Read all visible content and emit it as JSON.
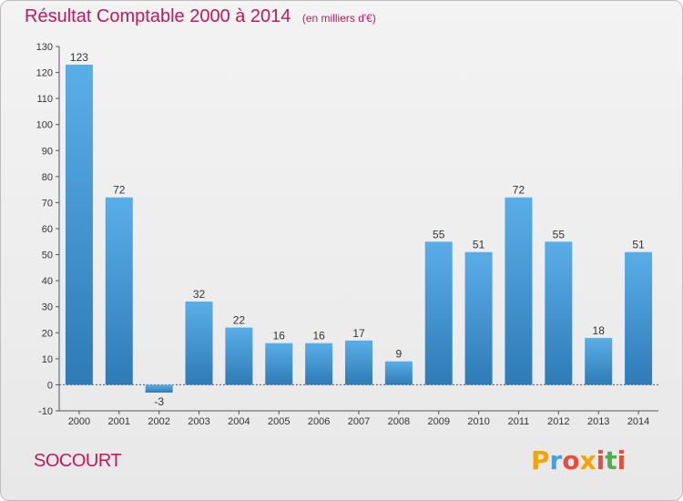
{
  "header": {
    "title": "Résultat Comptable 2000 à 2014",
    "unit": "(en milliers d'€)"
  },
  "place": "SOCOURT",
  "logo": {
    "text": "Proxiti",
    "colors": [
      "#f4a300",
      "#4a9fd8",
      "#e74c3c",
      "#f4a300",
      "#e74c3c",
      "#4caf50",
      "#e74c3c"
    ]
  },
  "colors": {
    "title": "#c2185b",
    "bar_top": "#5aaee8",
    "bar_bottom": "#2e7bb6"
  },
  "chart_data": {
    "type": "bar",
    "title": "Résultat Comptable 2000 à 2014",
    "xlabel": "",
    "ylabel": "",
    "ylim": [
      -10,
      130
    ],
    "yticks": [
      -10,
      0,
      10,
      20,
      30,
      40,
      50,
      60,
      70,
      80,
      90,
      100,
      110,
      120,
      130
    ],
    "categories": [
      "2000",
      "2001",
      "2002",
      "2003",
      "2004",
      "2005",
      "2006",
      "2007",
      "2008",
      "2009",
      "2010",
      "2011",
      "2012",
      "2013",
      "2014"
    ],
    "values": [
      123,
      72,
      -3,
      32,
      22,
      16,
      16,
      17,
      9,
      55,
      51,
      72,
      55,
      18,
      51
    ],
    "grid": false,
    "legend": "none"
  }
}
